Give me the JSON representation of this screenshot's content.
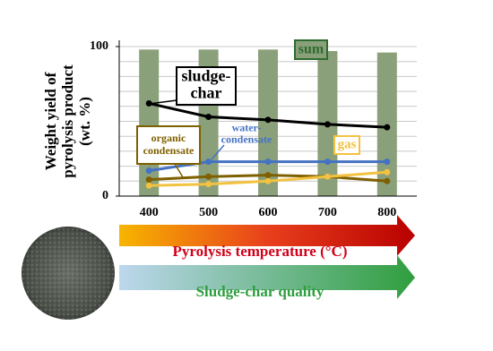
{
  "chart_data": {
    "type": "bar-line",
    "y_label": "Weight yield of\npyrolysis product\n(wt. %)",
    "x_label": "Pyrolysis temperature (°C)",
    "quality_label": "Sludge-char quality",
    "categories": [
      "400",
      "500",
      "600",
      "700",
      "800"
    ],
    "ylim": [
      0,
      100
    ],
    "yticks": [
      0,
      100
    ],
    "gridlines": [
      10,
      20,
      30,
      40,
      50,
      60,
      70,
      80,
      90,
      100
    ],
    "series": [
      {
        "name": "sum",
        "kind": "bar",
        "color": "#8aa07a",
        "values": [
          98,
          98,
          98,
          97,
          96
        ]
      },
      {
        "name": "sludge-\nchar",
        "kind": "line",
        "color": "#000000",
        "values": [
          62,
          53,
          51,
          48,
          46
        ]
      },
      {
        "name": "water-\ncondensate",
        "kind": "line",
        "color": "#4472c4",
        "values": [
          17,
          23,
          23,
          23,
          23
        ]
      },
      {
        "name": "organic\ncondensate",
        "kind": "line",
        "color": "#7f6000",
        "values": [
          11,
          13,
          14,
          13,
          10
        ]
      },
      {
        "name": "gas",
        "kind": "line",
        "color": "#f2c240",
        "values": [
          7,
          8,
          10,
          13,
          16
        ]
      }
    ]
  }
}
